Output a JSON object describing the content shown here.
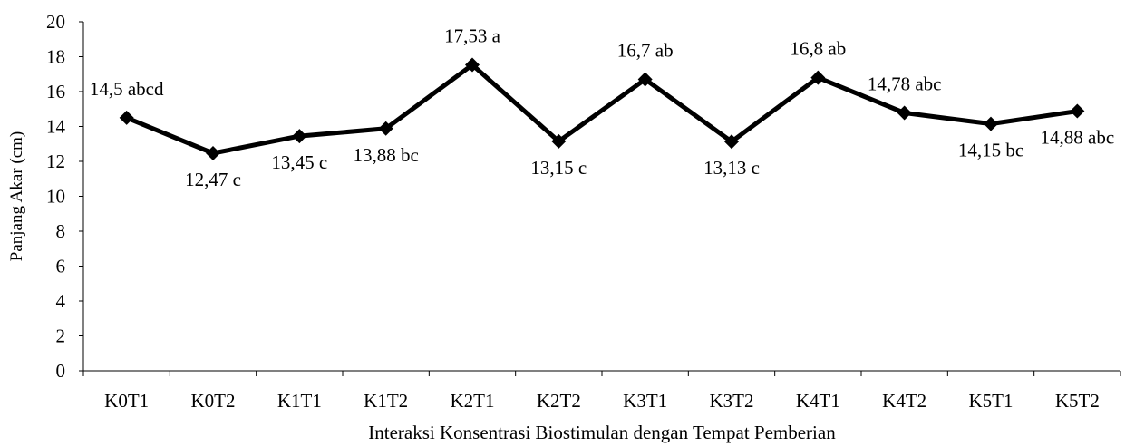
{
  "chart_data": {
    "type": "line",
    "title": "",
    "xlabel": "Interaksi Konsentrasi Biostimulan dengan Tempat Pemberian",
    "ylabel": "Panjang Akar (cm)",
    "ylim": [
      0,
      20
    ],
    "yticks": [
      "0",
      "2",
      "4",
      "6",
      "8",
      "10",
      "12",
      "14",
      "16",
      "18",
      "20"
    ],
    "grid": false,
    "legend": "none",
    "line_color": "#000000",
    "marker": "diamond",
    "categories": [
      "K0T1",
      "K0T2",
      "K1T1",
      "K1T2",
      "K2T1",
      "K2T2",
      "K3T1",
      "K3T2",
      "K4T1",
      "K4T2",
      "K5T1",
      "K5T2"
    ],
    "series": [
      {
        "values": [
          14.5,
          12.47,
          13.45,
          13.88,
          17.53,
          13.15,
          16.7,
          13.13,
          16.8,
          14.78,
          14.15,
          14.88
        ],
        "data_labels": [
          "14,5 abcd",
          "12,47 c",
          "13,45 c",
          "13,88 bc",
          "17,53 a",
          "13,15 c",
          "16,7 ab",
          "13,13 c",
          "16,8 ab",
          "14,78 abc",
          "14,15 bc",
          "14,88 abc"
        ]
      }
    ]
  }
}
